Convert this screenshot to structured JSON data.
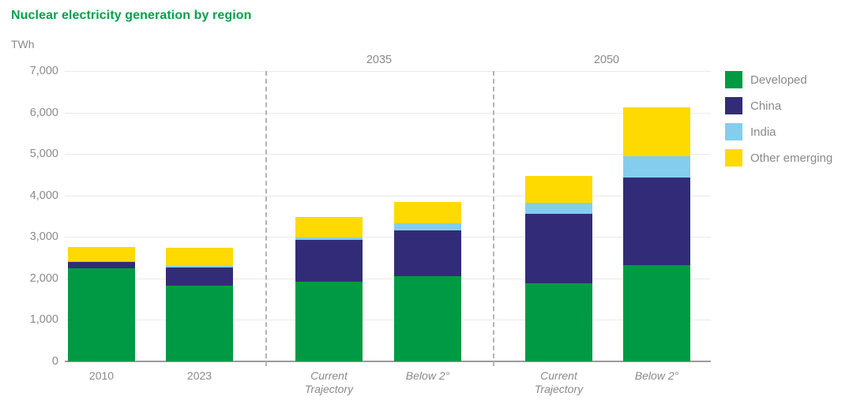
{
  "chart_data": {
    "type": "bar",
    "stacked": true,
    "title": "Nuclear electricity generation by region",
    "unit_label": "TWh",
    "ylabel": "TWh",
    "xlabel": "",
    "ylim": [
      0,
      7000
    ],
    "grid": true,
    "legend_position": "right",
    "y_ticks": [
      {
        "value": 0,
        "label": "0"
      },
      {
        "value": 1000,
        "label": "1,000"
      },
      {
        "value": 2000,
        "label": "2,000"
      },
      {
        "value": 3000,
        "label": "3,000"
      },
      {
        "value": 4000,
        "label": "4,000"
      },
      {
        "value": 5000,
        "label": "5,000"
      },
      {
        "value": 6000,
        "label": "6,000"
      },
      {
        "value": 7000,
        "label": "7,000"
      }
    ],
    "group_headers": [
      {
        "label": "2035"
      },
      {
        "label": "2050"
      }
    ],
    "categories": [
      {
        "label": "2010",
        "italic": false,
        "group": "history"
      },
      {
        "label": "2023",
        "italic": false,
        "group": "history"
      },
      {
        "label": "Current\nTrajectory",
        "italic": true,
        "group": "2035"
      },
      {
        "label": "Below 2°",
        "italic": true,
        "group": "2035"
      },
      {
        "label": "Current\nTrajectory",
        "italic": true,
        "group": "2050"
      },
      {
        "label": "Below 2°",
        "italic": true,
        "group": "2050"
      }
    ],
    "series": [
      {
        "name": "Developed",
        "color": "#009A44",
        "values": [
          2250,
          1820,
          1920,
          2050,
          1890,
          2320
        ]
      },
      {
        "name": "China",
        "color": "#322C78",
        "values": [
          150,
          435,
          1000,
          1100,
          1670,
          2120
        ]
      },
      {
        "name": "India",
        "color": "#85CDEE",
        "values": [
          20,
          50,
          75,
          170,
          260,
          500
        ]
      },
      {
        "name": "Other emerging",
        "color": "#FFDA00",
        "values": [
          330,
          425,
          495,
          530,
          650,
          1190
        ]
      }
    ],
    "totals": [
      2750,
      2730,
      3490,
      3850,
      4470,
      6130
    ],
    "colors": {
      "title": "#00A14B",
      "axis_text": "#8a8a8d",
      "gridline": "#e9e9e9",
      "zero_axis": "#9a9a9a",
      "separator": "#b3b3b3"
    }
  }
}
